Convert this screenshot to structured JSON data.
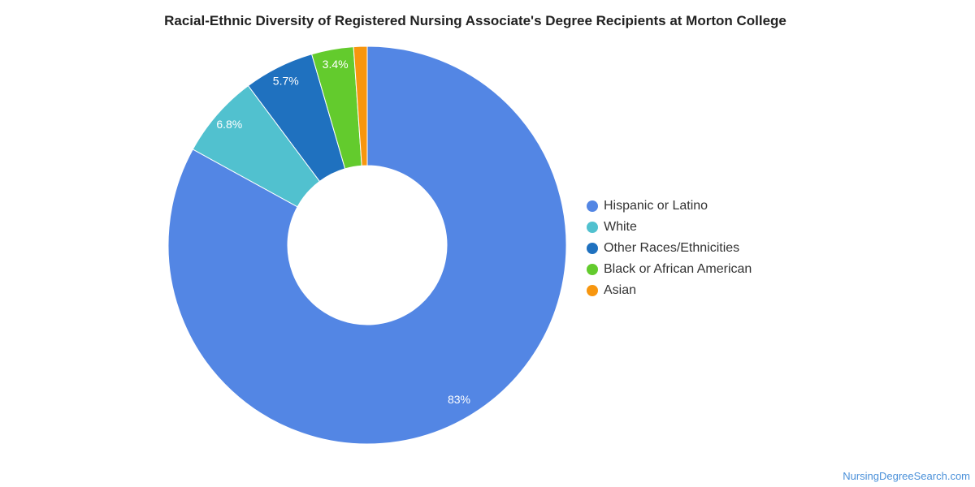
{
  "chart_data": {
    "type": "pie",
    "variant": "donut",
    "title": "Racial-Ethnic Diversity of Registered Nursing Associate's Degree Recipients at Morton College",
    "slices": [
      {
        "name": "Hispanic or Latino",
        "value": 83.0,
        "label": "83%",
        "color": "#5386e4"
      },
      {
        "name": "White",
        "value": 6.8,
        "label": "6.8%",
        "color": "#51c1cf"
      },
      {
        "name": "Other Races/Ethnicities",
        "value": 5.7,
        "label": "5.7%",
        "color": "#1f71bf"
      },
      {
        "name": "Black or African American",
        "value": 3.4,
        "label": "3.4%",
        "color": "#63cb2d"
      },
      {
        "name": "Asian",
        "value": 1.1,
        "label": "",
        "color": "#f7960f"
      }
    ],
    "legend_position": "right"
  },
  "source": {
    "label": "NursingDegreeSearch.com"
  }
}
